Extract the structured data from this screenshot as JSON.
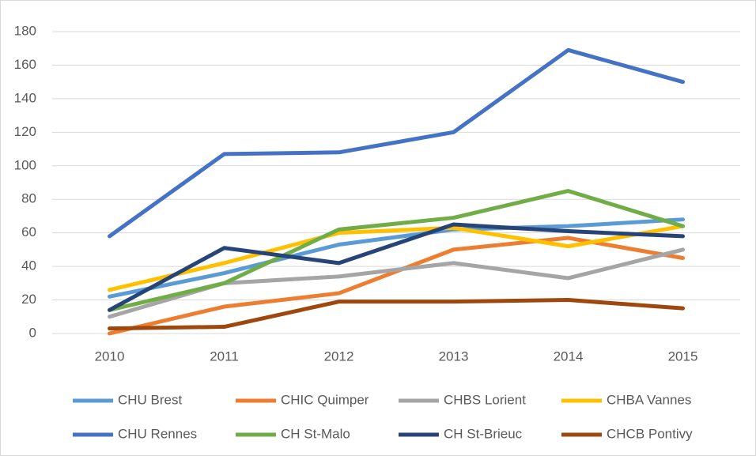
{
  "chart_data": {
    "type": "line",
    "categories": [
      "2010",
      "2011",
      "2012",
      "2013",
      "2014",
      "2015"
    ],
    "series": [
      {
        "name": "CHU Brest",
        "color": "#5b9bd5",
        "values": [
          22,
          36,
          53,
          62,
          64,
          68
        ]
      },
      {
        "name": "CHIC Quimper",
        "color": "#ed7d31",
        "values": [
          0,
          16,
          24,
          50,
          57,
          45
        ]
      },
      {
        "name": "CHBS Lorient",
        "color": "#a5a5a5",
        "values": [
          10,
          30,
          34,
          42,
          33,
          50
        ]
      },
      {
        "name": "CHBA Vannes",
        "color": "#ffc000",
        "values": [
          26,
          42,
          60,
          63,
          52,
          64
        ]
      },
      {
        "name": "CHU Rennes",
        "color": "#4472c4",
        "values": [
          58,
          107,
          108,
          120,
          169,
          150
        ]
      },
      {
        "name": "CH St-Malo",
        "color": "#70ad47",
        "values": [
          14,
          30,
          62,
          69,
          85,
          64
        ]
      },
      {
        "name": "CH St-Brieuc",
        "color": "#264478",
        "values": [
          14,
          51,
          42,
          65,
          61,
          58
        ]
      },
      {
        "name": "CHCB Pontivy",
        "color": "#9e480e",
        "values": [
          3,
          4,
          19,
          19,
          20,
          15
        ]
      }
    ],
    "ylim": [
      0,
      180
    ],
    "yticks": [
      0,
      20,
      40,
      60,
      80,
      100,
      120,
      140,
      160,
      180
    ],
    "grid": true,
    "legend": "bottom"
  }
}
